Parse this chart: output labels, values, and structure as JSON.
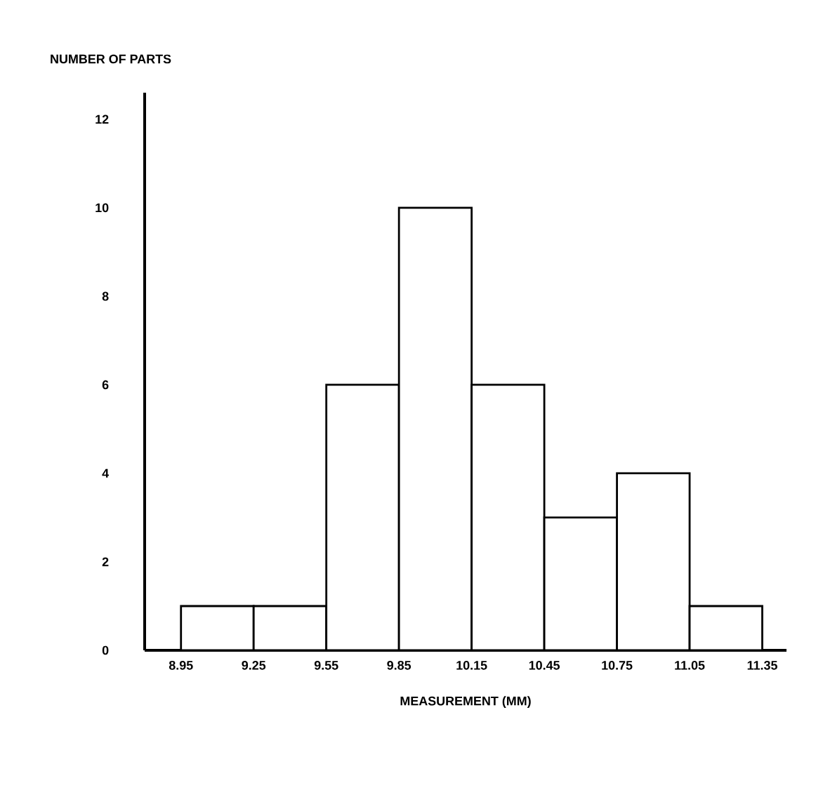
{
  "chart_data": {
    "type": "histogram",
    "xlabel": "MEASUREMENT (MM)",
    "ylabel": "NUMBER OF PARTS",
    "bins": [
      8.95,
      9.25,
      9.55,
      9.85,
      10.15,
      10.45,
      10.75,
      11.05,
      11.35
    ],
    "values": [
      1,
      1,
      6,
      10,
      6,
      3,
      4,
      1
    ],
    "xlim": [
      8.8,
      11.45
    ],
    "ylim": [
      0,
      12.6
    ],
    "xticks": [
      8.95,
      9.25,
      9.55,
      9.85,
      10.15,
      10.45,
      10.75,
      11.05,
      11.35
    ],
    "yticks": [
      0,
      2,
      4,
      6,
      8,
      10,
      12
    ],
    "grid": false
  }
}
